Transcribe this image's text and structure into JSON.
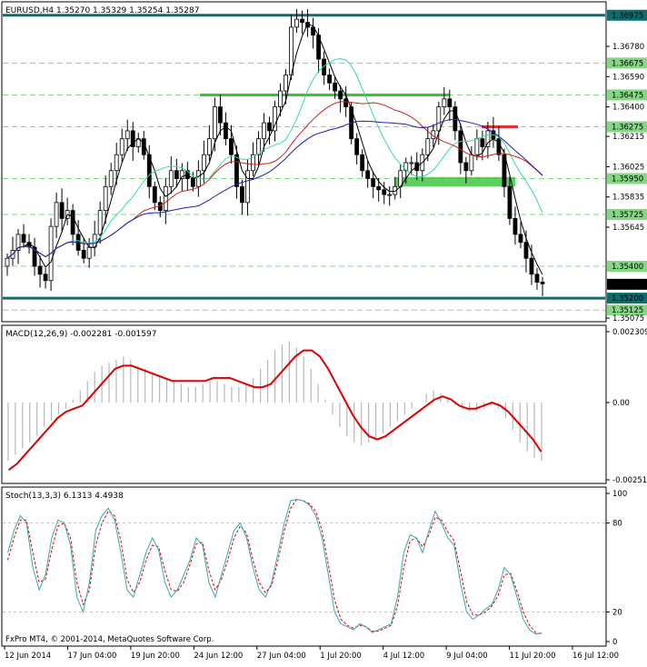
{
  "chart_data": [
    {
      "type": "candlestick",
      "title": "EURUSD,H4  1.35270 1.35329 1.35254 1.35287",
      "ylim": [
        1.35075,
        1.37025
      ],
      "price_labels": [
        "1.36975",
        "1.36780",
        "1.36675",
        "1.36590",
        "1.36475",
        "1.36400",
        "1.36275",
        "1.36215",
        "1.36025",
        "1.35950",
        "1.35835",
        "1.35725",
        "1.35645",
        "1.35400",
        "1.35287",
        "1.35200",
        "1.35125",
        "1.35075"
      ],
      "highlighted_levels": [
        {
          "value": "1.36975",
          "role": "resistance"
        },
        {
          "value": "1.36675",
          "role": "level"
        },
        {
          "value": "1.36475",
          "role": "level"
        },
        {
          "value": "1.36275",
          "role": "level"
        },
        {
          "value": "1.35950",
          "role": "level"
        },
        {
          "value": "1.35725",
          "role": "level"
        },
        {
          "value": "1.35400",
          "role": "level"
        },
        {
          "value": "1.35200",
          "role": "support"
        },
        {
          "value": "1.35125",
          "role": "level"
        }
      ],
      "current_price": "1.35287",
      "colors": {
        "candles": "#000000",
        "resistance_line": "#0d6d6d",
        "level_dash": "#86d686",
        "zone_green": "#35c435",
        "zone_red": "#e63030",
        "ma_fast": "#000000",
        "ma_mid": "#33dd99",
        "ma_slow": "#cc2222",
        "ma_blue": "#1f1fb0"
      },
      "x_labels": [
        "12 Jun 2014",
        "17 Jun 04:00",
        "19 Jun 20:00",
        "24 Jun 12:00",
        "27 Jun 04:00",
        "1 Jul 20:00",
        "4 Jul 12:00",
        "9 Jul 04:00",
        "11 Jul 20:00",
        "16 Jul 12:00"
      ],
      "close": [
        1.3545,
        1.355,
        1.356,
        1.3555,
        1.3552,
        1.354,
        1.3535,
        1.3531,
        1.3565,
        1.358,
        1.357,
        1.3575,
        1.356,
        1.355,
        1.3545,
        1.3552,
        1.356,
        1.3575,
        1.359,
        1.36,
        1.361,
        1.362,
        1.3625,
        1.3615,
        1.362,
        1.361,
        1.359,
        1.358,
        1.3575,
        1.359,
        1.36,
        1.3595,
        1.36,
        1.3595,
        1.359,
        1.36,
        1.361,
        1.362,
        1.364,
        1.363,
        1.362,
        1.361,
        1.359,
        1.358,
        1.36,
        1.361,
        1.362,
        1.363,
        1.3625,
        1.364,
        1.365,
        1.366,
        1.369,
        1.3695,
        1.3693,
        1.369,
        1.3685,
        1.367,
        1.366,
        1.3655,
        1.365,
        1.3645,
        1.364,
        1.362,
        1.361,
        1.36,
        1.3595,
        1.359,
        1.3588,
        1.3585,
        1.3585,
        1.359,
        1.36,
        1.3605,
        1.3605,
        1.36,
        1.361,
        1.362,
        1.3625,
        1.364,
        1.3645,
        1.364,
        1.3625,
        1.3605,
        1.36,
        1.361,
        1.362,
        1.3615,
        1.3625,
        1.362,
        1.361,
        1.359,
        1.357,
        1.356,
        1.3555,
        1.3545,
        1.3535,
        1.353,
        1.3529
      ],
      "indicators": [
        "moving-average-black",
        "moving-average-teal",
        "moving-average-red",
        "moving-average-blue"
      ]
    },
    {
      "type": "histogram+line",
      "title": "MACD(12,26,9) -0.002281 -0.001597",
      "ylim": [
        -0.002519,
        0.002309
      ],
      "price_labels": [
        "0.002309",
        "0.00",
        "-0.002519"
      ],
      "histogram": [
        -0.0019,
        -0.0017,
        -0.0015,
        -0.0013,
        -0.0011,
        -0.0008,
        -0.0006,
        -0.0004,
        -0.0002,
        0.0001,
        0.0004,
        0.0007,
        0.001,
        0.0012,
        0.0013,
        0.0014,
        0.0015,
        0.0014,
        0.0012,
        0.0011,
        0.001,
        0.0009,
        0.0008,
        0.0007,
        0.0006,
        0.0005,
        0.0005,
        0.0006,
        0.0007,
        0.0007,
        0.0006,
        0.0005,
        0.0005,
        0.0006,
        0.0008,
        0.0011,
        0.0014,
        0.0017,
        0.0019,
        0.002,
        0.0018,
        0.0015,
        0.0011,
        0.0006,
        0.0001,
        -0.0004,
        -0.0008,
        -0.0011,
        -0.0013,
        -0.0014,
        -0.0013,
        -0.0012,
        -0.001,
        -0.0008,
        -0.0006,
        -0.0004,
        -0.0002,
        0.0,
        0.0003,
        0.0004,
        0.0003,
        0.0001,
        -0.0001,
        -0.0002,
        -0.0003,
        -0.0003,
        -0.0002,
        -0.0001,
        -0.0002,
        -0.0005,
        -0.0009,
        -0.0013,
        -0.0016,
        -0.0018,
        -0.0019
      ],
      "signal": [
        -0.0022,
        -0.002,
        -0.0017,
        -0.0014,
        -0.0011,
        -0.0008,
        -0.0005,
        -0.0003,
        -0.0002,
        -0.0001,
        0.0002,
        0.0005,
        0.0008,
        0.0011,
        0.0012,
        0.0012,
        0.0011,
        0.001,
        0.0009,
        0.0008,
        0.0007,
        0.0007,
        0.0007,
        0.0007,
        0.0007,
        0.0008,
        0.0008,
        0.0008,
        0.0007,
        0.0006,
        0.0005,
        0.0005,
        0.0006,
        0.0009,
        0.0012,
        0.0015,
        0.0017,
        0.0017,
        0.0015,
        0.0011,
        0.0006,
        0.0001,
        -0.0004,
        -0.0008,
        -0.0011,
        -0.0012,
        -0.0011,
        -0.0009,
        -0.0007,
        -0.0005,
        -0.0003,
        -0.0001,
        0.0001,
        0.0002,
        0.0001,
        -0.0001,
        -0.0002,
        -0.0002,
        -0.0001,
        0.0,
        -0.0001,
        -0.0003,
        -0.0006,
        -0.0009,
        -0.0012,
        -0.0016
      ],
      "colors": {
        "histogram": "#b7b7b7",
        "signal": "#dd0000"
      }
    },
    {
      "type": "line",
      "title": "Stoch(13,3,3) 6.1313 4.4938",
      "ylim": [
        0,
        100
      ],
      "price_labels": [
        "100",
        "80",
        "20",
        "0"
      ],
      "levels": [
        80,
        20
      ],
      "main": [
        60,
        75,
        85,
        80,
        50,
        35,
        45,
        70,
        82,
        80,
        65,
        30,
        20,
        40,
        75,
        85,
        90,
        82,
        60,
        35,
        30,
        45,
        60,
        70,
        62,
        40,
        30,
        35,
        45,
        55,
        70,
        65,
        40,
        30,
        45,
        60,
        75,
        80,
        70,
        50,
        35,
        30,
        40,
        60,
        80,
        95,
        96,
        95,
        92,
        85,
        70,
        45,
        20,
        12,
        10,
        8,
        12,
        10,
        6,
        8,
        10,
        12,
        30,
        60,
        72,
        70,
        60,
        75,
        88,
        80,
        70,
        65,
        40,
        20,
        15,
        18,
        22,
        25,
        35,
        50,
        45,
        30,
        15,
        8,
        5,
        6
      ],
      "signal": [
        55,
        70,
        82,
        82,
        60,
        40,
        42,
        62,
        78,
        80,
        70,
        40,
        25,
        35,
        65,
        80,
        88,
        85,
        68,
        42,
        33,
        40,
        55,
        65,
        64,
        48,
        35,
        34,
        40,
        52,
        66,
        67,
        48,
        35,
        42,
        55,
        70,
        78,
        73,
        55,
        40,
        33,
        38,
        55,
        75,
        90,
        96,
        95,
        93,
        88,
        75,
        52,
        28,
        15,
        11,
        9,
        11,
        10,
        7,
        7,
        9,
        11,
        24,
        50,
        68,
        70,
        64,
        72,
        84,
        82,
        74,
        68,
        48,
        27,
        18,
        18,
        20,
        24,
        31,
        45,
        46,
        34,
        20,
        11,
        6,
        5
      ],
      "colors": {
        "main": "#3da7a7",
        "signal": "#dd0000"
      }
    }
  ],
  "footer": {
    "copyright": "FxPro MT4, © 2001-2014, MetaQuotes Software Corp."
  }
}
